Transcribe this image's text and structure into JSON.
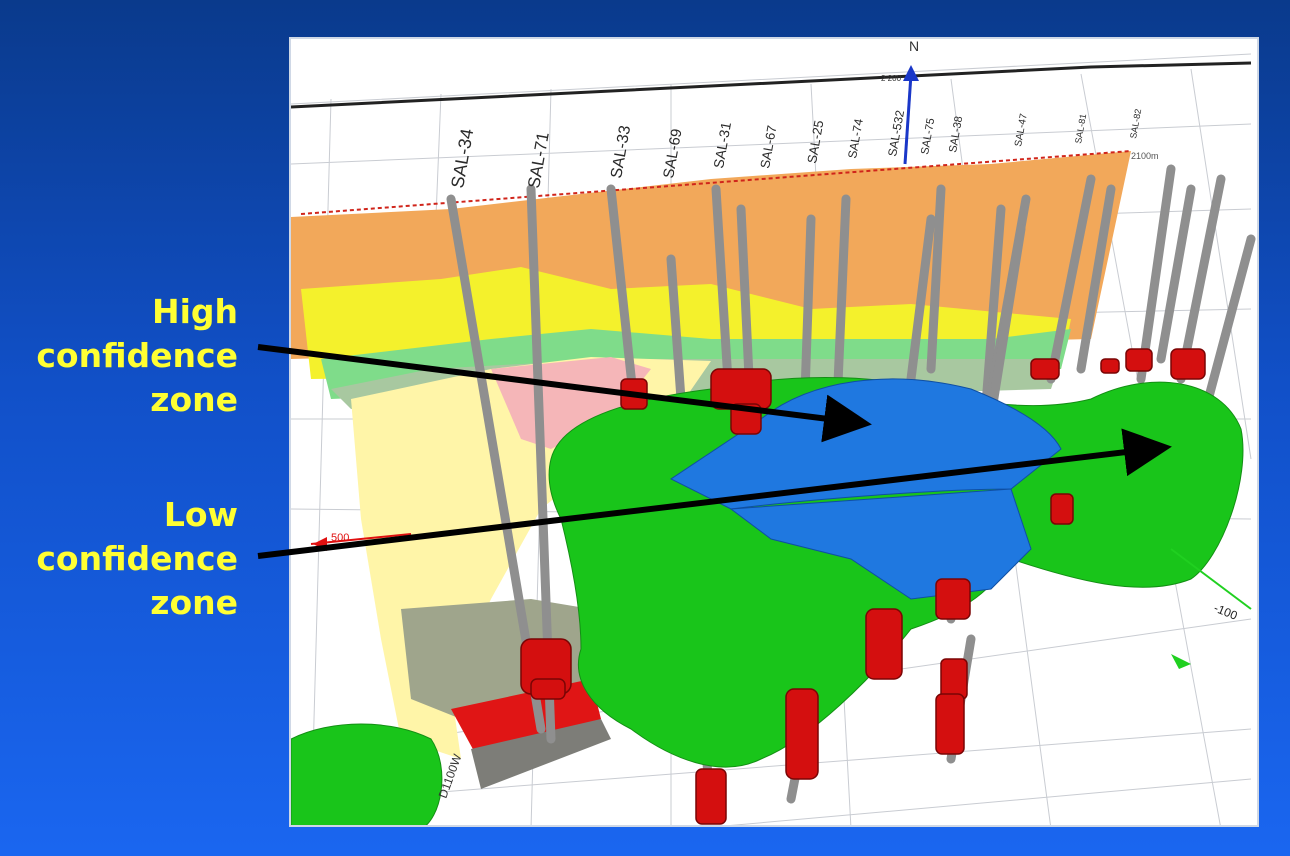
{
  "callouts": {
    "high": [
      "High",
      "confidence",
      "zone"
    ],
    "low": [
      "Low",
      "confidence",
      "zone"
    ]
  },
  "scene": {
    "north_label": "N",
    "north_tick": "2 200",
    "well_labels": [
      "SAL-34",
      "SAL-71",
      "SAL-33",
      "SAL-69",
      "SAL-31",
      "SAL-67",
      "SAL-25",
      "SAL-74",
      "SAL-532",
      "SAL-75",
      "SAL-38",
      "SAL-47",
      "SAL-81",
      "SAL-82"
    ],
    "axis_left": "500",
    "axis_right": "-100",
    "axis_bottom": "D1100W",
    "elev_label": "2100m",
    "colors": {
      "high_confidence": "#1f78e0",
      "low_confidence": "#19c51a",
      "casing": "#d40f0f",
      "well": "#9a9a9a"
    }
  }
}
